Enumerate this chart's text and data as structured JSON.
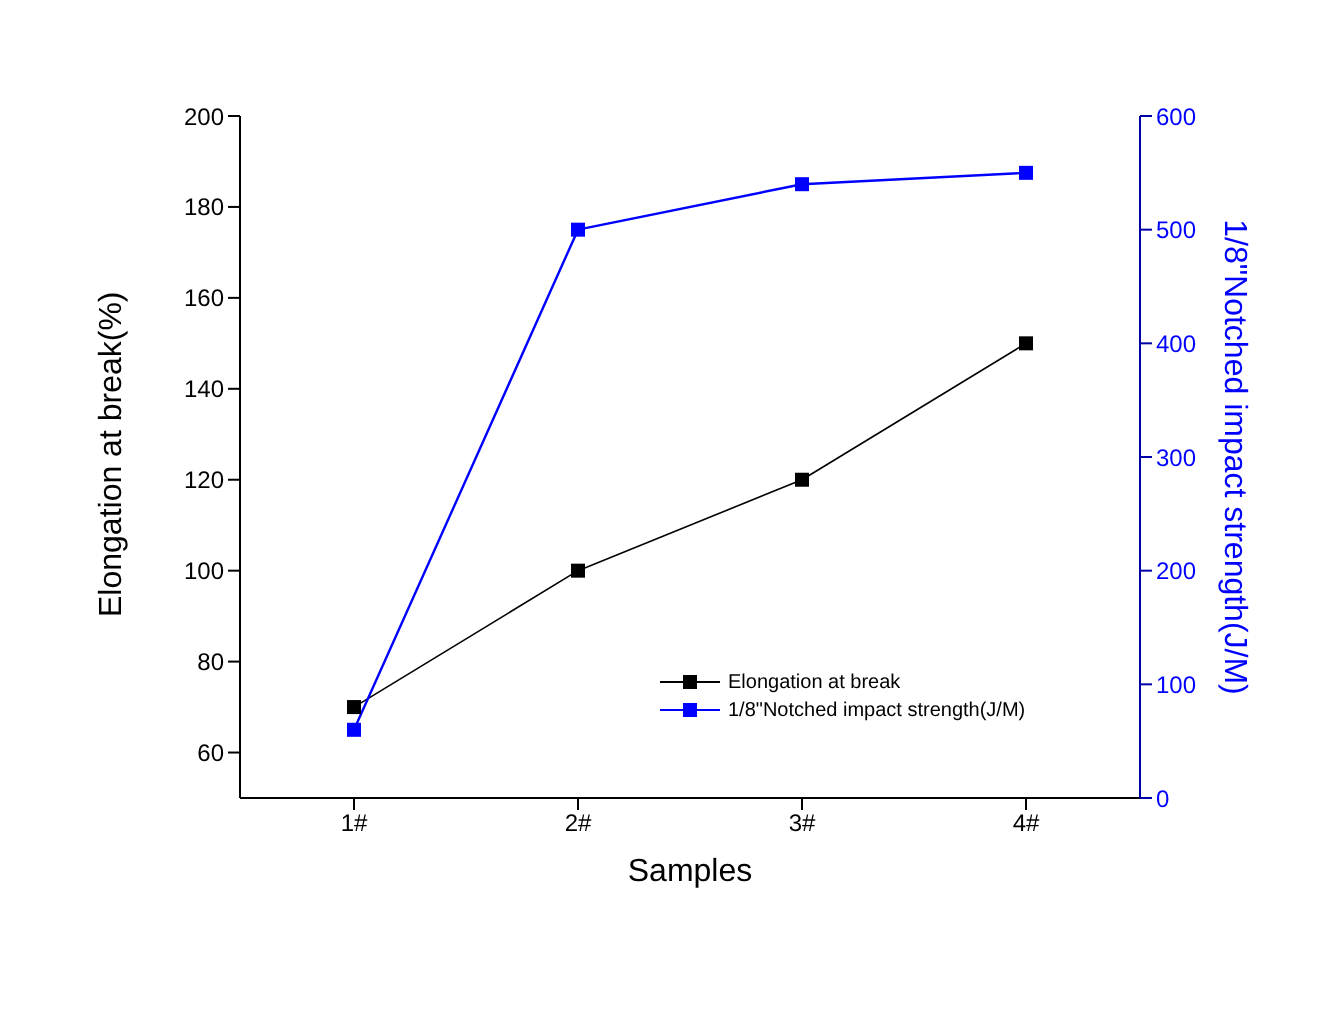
{
  "chart_data": {
    "type": "line",
    "xlabel": "Samples",
    "ylabel": "Elongation at break(%)",
    "y2label": "1/8\"Notched impact strength(J/M)",
    "categories": [
      "1#",
      "2#",
      "3#",
      "4#"
    ],
    "series": [
      {
        "name": "Elongation at break",
        "color": "#000000",
        "values": [
          70,
          100,
          120,
          150
        ]
      },
      {
        "name": "1/8\"Notched impact strength(J/M)",
        "color": "#0000ff",
        "values": [
          60,
          500,
          540,
          550
        ],
        "axis": "y2"
      }
    ],
    "ylim": [
      50,
      200
    ],
    "yticks": [
      60,
      80,
      100,
      120,
      140,
      160,
      180,
      200
    ],
    "y2lim": [
      0,
      600
    ],
    "y2ticks": [
      0,
      100,
      200,
      300,
      400,
      500,
      600
    ],
    "marker": "square",
    "line_style": "solid",
    "grid": false,
    "legend": "bottom right"
  }
}
